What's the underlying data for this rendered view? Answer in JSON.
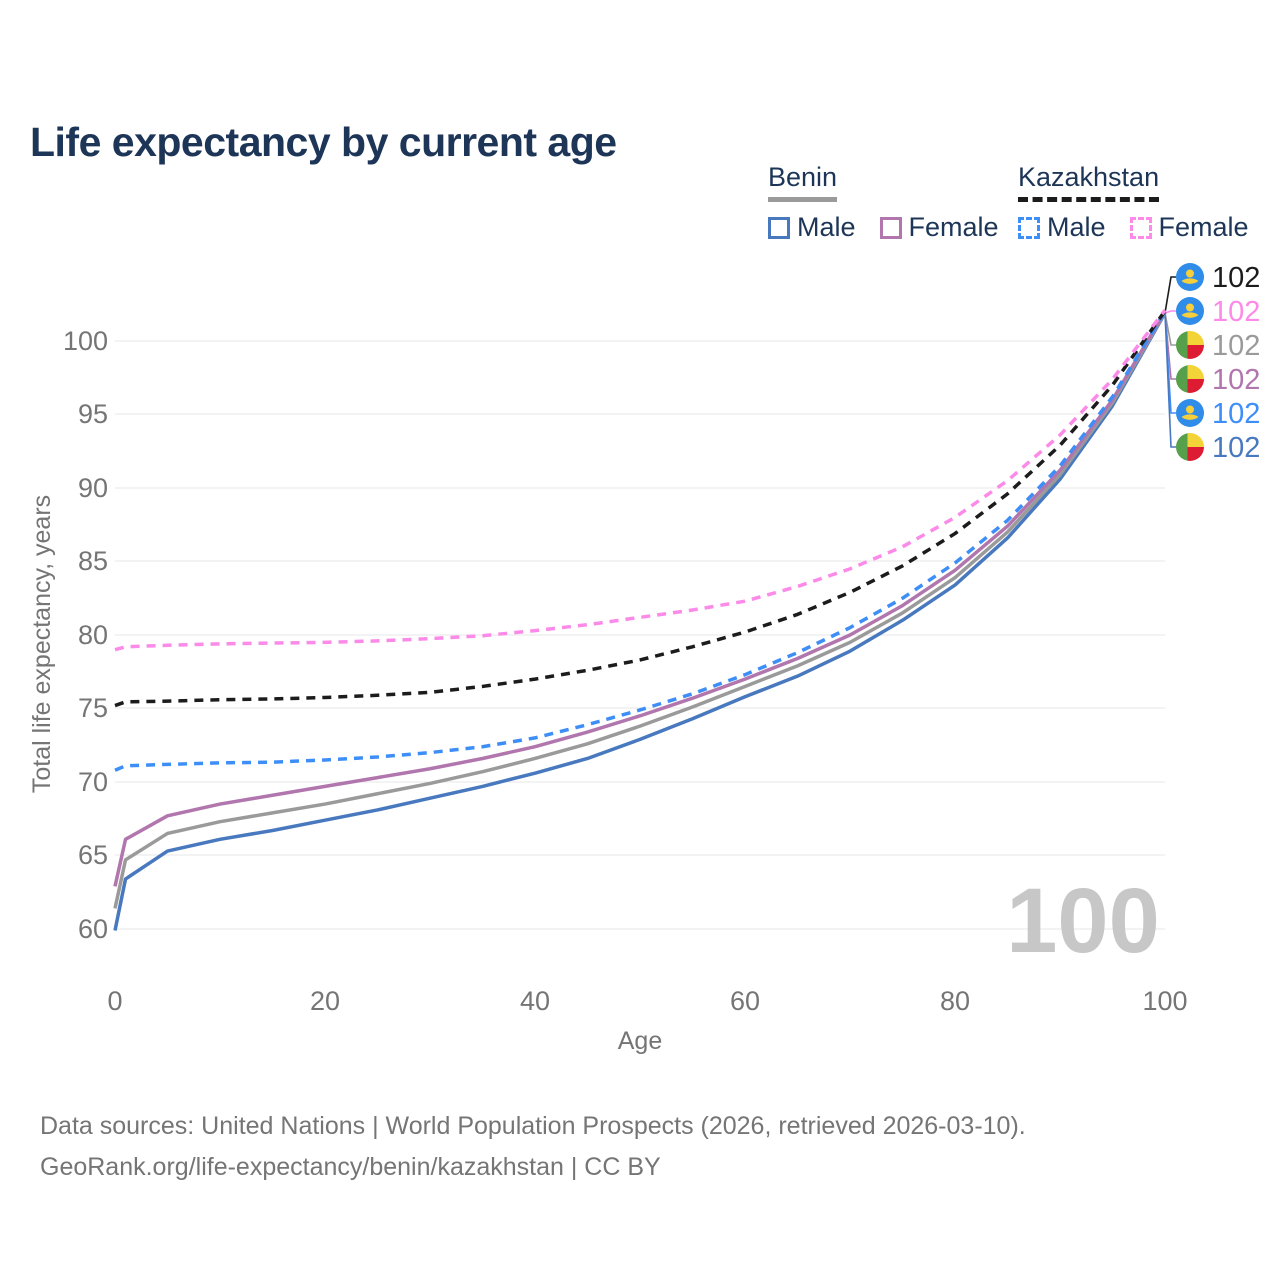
{
  "title": "Life expectancy by current age",
  "legend": {
    "groups": [
      {
        "country": "Benin",
        "entries": [
          {
            "label": "Male"
          },
          {
            "label": "Female"
          }
        ]
      },
      {
        "country": "Kazakhstan",
        "entries": [
          {
            "label": "Male"
          },
          {
            "label": "Female"
          }
        ]
      }
    ]
  },
  "colors": {
    "title": "#1d3557",
    "axis_text": "#757575",
    "grid": "#e7e7e7",
    "watermark": "#c7c7c7",
    "footer_text": "#757575",
    "benin_male": "#4878be",
    "benin_female": "#b176ad",
    "benin_both": "#9a9a9a",
    "kazakhstan_male": "#3e8ef7",
    "kazakhstan_female": "#fb8ae8",
    "kazakhstan_both": "#1c1c1c",
    "flag_kz_blue": "#2f8ce8",
    "flag_kz_yellow": "#f7cf3c",
    "flag_benin_green": "#57a04b",
    "flag_benin_yellow": "#f2d338",
    "flag_benin_red": "#dd1c33"
  },
  "chart_data": {
    "type": "line",
    "title": "Life expectancy by current age",
    "xlabel": "Age",
    "ylabel": "Total life expectancy, years",
    "x_ticks": [
      0,
      20,
      40,
      60,
      80,
      100
    ],
    "y_ticks": [
      60,
      65,
      70,
      75,
      80,
      85,
      90,
      95,
      100
    ],
    "xlim": [
      0,
      100
    ],
    "ylim": [
      58,
      103
    ],
    "grid": "horizontal-only",
    "legend_position": "top-right",
    "watermark": "100",
    "x": [
      0,
      1,
      5,
      10,
      15,
      20,
      25,
      30,
      35,
      40,
      45,
      50,
      55,
      60,
      65,
      70,
      75,
      80,
      85,
      90,
      95,
      100
    ],
    "series": [
      {
        "name": "Benin Male",
        "country": "Benin",
        "sex": "Male",
        "style": "solid",
        "color": "#4878be",
        "values": [
          59.9,
          63.4,
          65.3,
          66.1,
          66.7,
          67.4,
          68.1,
          68.9,
          69.7,
          70.6,
          71.6,
          72.9,
          74.3,
          75.8,
          77.2,
          78.9,
          81.0,
          83.4,
          86.6,
          90.6,
          95.6,
          101.9
        ]
      },
      {
        "name": "Benin Both sexes",
        "country": "Benin",
        "sex": "Both",
        "style": "solid",
        "color": "#9a9a9a",
        "values": [
          61.4,
          64.7,
          66.5,
          67.3,
          67.9,
          68.5,
          69.2,
          69.9,
          70.7,
          71.6,
          72.6,
          73.8,
          75.1,
          76.5,
          77.9,
          79.5,
          81.5,
          83.9,
          87.0,
          90.9,
          95.8,
          101.95
        ]
      },
      {
        "name": "Benin Female",
        "country": "Benin",
        "sex": "Female",
        "style": "solid",
        "color": "#b176ad",
        "values": [
          62.9,
          66.1,
          67.7,
          68.5,
          69.1,
          69.7,
          70.3,
          70.9,
          71.6,
          72.4,
          73.4,
          74.5,
          75.7,
          77.0,
          78.4,
          80.0,
          82.0,
          84.4,
          87.4,
          91.2,
          96.0,
          102.0
        ]
      },
      {
        "name": "Kazakhstan Male",
        "country": "Kazakhstan",
        "sex": "Male",
        "style": "dashed",
        "color": "#3e8ef7",
        "values": [
          70.8,
          71.1,
          71.2,
          71.3,
          71.35,
          71.5,
          71.7,
          72.0,
          72.4,
          73.0,
          73.9,
          74.9,
          76.0,
          77.3,
          78.8,
          80.5,
          82.5,
          84.9,
          87.8,
          91.5,
          96.2,
          102.0
        ]
      },
      {
        "name": "Kazakhstan Both sexes",
        "country": "Kazakhstan",
        "sex": "Both",
        "style": "dashed",
        "color": "#1c1c1c",
        "values": [
          75.2,
          75.45,
          75.5,
          75.6,
          75.65,
          75.75,
          75.9,
          76.1,
          76.5,
          77.0,
          77.6,
          78.3,
          79.2,
          80.2,
          81.4,
          82.9,
          84.7,
          86.9,
          89.6,
          92.9,
          97.0,
          102.05
        ]
      },
      {
        "name": "Kazakhstan Female",
        "country": "Kazakhstan",
        "sex": "Female",
        "style": "dashed",
        "color": "#fb8ae8",
        "values": [
          79.0,
          79.2,
          79.3,
          79.4,
          79.45,
          79.5,
          79.6,
          79.75,
          79.95,
          80.3,
          80.7,
          81.2,
          81.7,
          82.3,
          83.3,
          84.5,
          86.0,
          88.0,
          90.5,
          93.6,
          97.4,
          102.1
        ]
      }
    ],
    "end_labels": [
      {
        "flag": "kazakhstan",
        "series": "Kazakhstan Both sexes",
        "value": "102",
        "color": "#1c1c1c"
      },
      {
        "flag": "kazakhstan",
        "series": "Kazakhstan Female",
        "value": "102",
        "color": "#fb8ae8"
      },
      {
        "flag": "benin",
        "series": "Benin Both sexes",
        "value": "102",
        "color": "#9a9a9a"
      },
      {
        "flag": "benin",
        "series": "Benin Female",
        "value": "102",
        "color": "#b176ad"
      },
      {
        "flag": "kazakhstan",
        "series": "Kazakhstan Male",
        "value": "102",
        "color": "#3e8ef7"
      },
      {
        "flag": "benin",
        "series": "Benin Male",
        "value": "102",
        "color": "#4878be"
      }
    ]
  },
  "footer": {
    "line1": "Data sources: United Nations | World Population Prospects (2026, retrieved 2026-03-10).",
    "line2": "GeoRank.org/life-expectancy/benin/kazakhstan | CC BY"
  }
}
